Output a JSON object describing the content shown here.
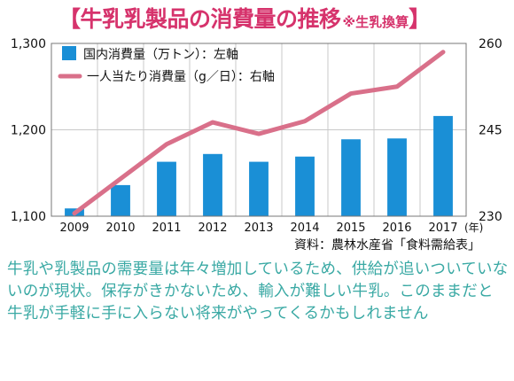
{
  "title": {
    "main": "【牛乳乳製品の消費量の推移",
    "note": "※生乳換算",
    "close": "】"
  },
  "source": "資料：農林水産省「食料需給表」",
  "caption": "牛乳や乳製品の需要量は年々増加しているため、供給が追いついていないのが現状。保存がきかないため、輸入が難しい牛乳。このままだと牛乳が手軽に手に入らない将来がやってくるかもしれません",
  "colors": {
    "bar": "#1a8fd6",
    "line": "#d9708a",
    "title": "#d6336c",
    "caption": "#3aa9a4"
  },
  "chart_data": {
    "type": "bar",
    "categories": [
      "2009",
      "2010",
      "2011",
      "2012",
      "2013",
      "2014",
      "2015",
      "2016",
      "2017"
    ],
    "x_unit": "(年)",
    "series": [
      {
        "name": "国内消費量（万トン）：左軸",
        "type": "bar",
        "axis": "left",
        "values": [
          1109,
          1136,
          1163,
          1172,
          1163,
          1169,
          1189,
          1190,
          1216
        ]
      },
      {
        "name": "一人当たり消費量（g／日）：右軸",
        "type": "line",
        "axis": "right",
        "values": [
          230.5,
          236.5,
          242.5,
          246.3,
          244.3,
          246.5,
          251.3,
          252.5,
          258.5
        ]
      }
    ],
    "left_axis": {
      "ylim": [
        1100,
        1300
      ],
      "ticks": [
        "1,100",
        "1,200",
        "1,300"
      ],
      "tick_values": [
        1100,
        1200,
        1300
      ]
    },
    "right_axis": {
      "ylim": [
        230,
        260
      ],
      "ticks": [
        "230",
        "245",
        "260"
      ],
      "tick_values": [
        230,
        245,
        260
      ]
    },
    "grid": true,
    "legend_position": "top-left"
  }
}
